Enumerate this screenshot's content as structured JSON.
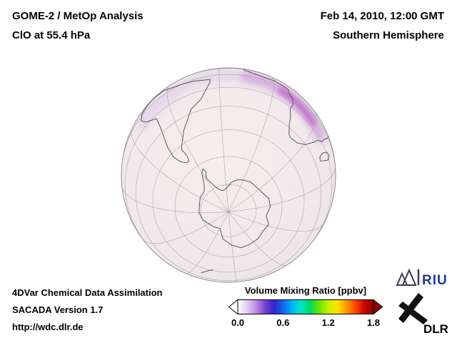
{
  "header": {
    "instrument": "GOME-2 / MetOp Analysis",
    "product": "ClO at 55.4 hPa",
    "datetime": "Feb 14, 2010, 12:00 GMT",
    "hemisphere": "Southern Hemisphere"
  },
  "footer": {
    "system": "4DVar Chemical Data Assimilation",
    "version": "SACADA Version 1.7",
    "url": "http://wdc.dlr.de"
  },
  "colorbar": {
    "title": "Volume Mixing Ratio [ppbv]",
    "tick_labels": [
      "0.0",
      "0.6",
      "1.2",
      "1.8"
    ],
    "min": 0.0,
    "max": 1.8,
    "units": "ppbv",
    "gradient": [
      "#ffffff",
      "#e4d0f0",
      "#bb8ce2",
      "#7744d0",
      "#3322cc",
      "#1166ee",
      "#00b4f8",
      "#00e6c8",
      "#00d860",
      "#66e600",
      "#c8f000",
      "#ffe400",
      "#ff9c00",
      "#ff4400",
      "#cc0800",
      "#8b0000"
    ],
    "underflow_color": "#ffffff",
    "overflow_color": "#8b0000"
  },
  "map": {
    "base_tint": "#f0e8ea",
    "band_colors": [
      "#d9c2e8",
      "#c98fd6",
      "#bb5ec8"
    ],
    "grid_color": "#a89fa2",
    "coast_color": "#4a4a4a",
    "rim_color": "#8a8a8a"
  },
  "logos": {
    "riu_text": "RIU",
    "riu_color": "#1f3a93",
    "dlr_text": "DLR",
    "dlr_color": "#000000"
  }
}
